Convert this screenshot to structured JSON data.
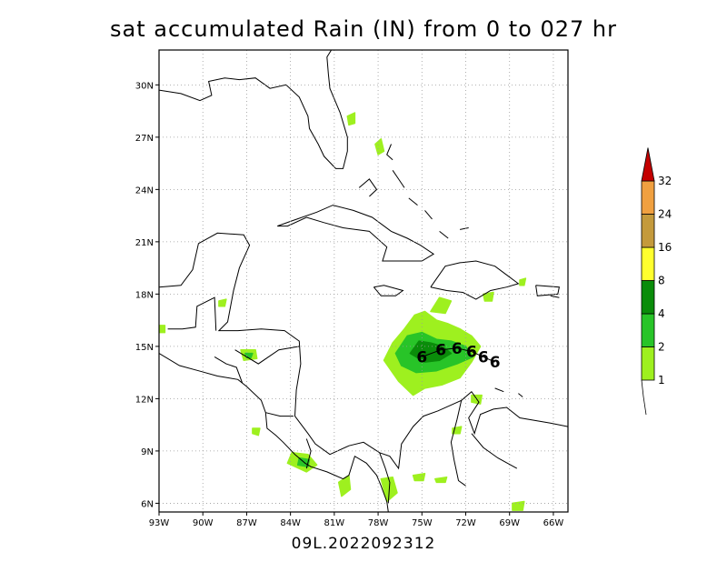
{
  "title": "sat accumulated Rain (IN) from 0 to 027 hr",
  "footer": "09L.2022092312",
  "map": {
    "lon_range": [
      -93,
      -65
    ],
    "lat_range": [
      5.5,
      32
    ],
    "lon_ticks": [
      {
        "value": -93,
        "label": "93W"
      },
      {
        "value": -90,
        "label": "90W"
      },
      {
        "value": -87,
        "label": "87W"
      },
      {
        "value": -84,
        "label": "84W"
      },
      {
        "value": -81,
        "label": "81W"
      },
      {
        "value": -78,
        "label": "78W"
      },
      {
        "value": -75,
        "label": "75W"
      },
      {
        "value": -72,
        "label": "72W"
      },
      {
        "value": -69,
        "label": "69W"
      },
      {
        "value": -66,
        "label": "66W"
      }
    ],
    "lat_ticks": [
      {
        "value": 6,
        "label": "6N"
      },
      {
        "value": 9,
        "label": "9N"
      },
      {
        "value": 12,
        "label": "12N"
      },
      {
        "value": 15,
        "label": "15N"
      },
      {
        "value": 18,
        "label": "18N"
      },
      {
        "value": 21,
        "label": "21N"
      },
      {
        "value": 24,
        "label": "24N"
      },
      {
        "value": 27,
        "label": "27N"
      },
      {
        "value": 30,
        "label": "30N"
      }
    ],
    "grid": true,
    "track_symbol": "6",
    "storm_track": [
      {
        "lon": -75.0,
        "lat": 14.4
      },
      {
        "lon": -73.7,
        "lat": 14.8
      },
      {
        "lon": -72.6,
        "lat": 14.9
      },
      {
        "lon": -71.6,
        "lat": 14.7
      },
      {
        "lon": -70.8,
        "lat": 14.4
      },
      {
        "lon": -70.0,
        "lat": 14.1
      }
    ]
  },
  "legend": {
    "labels": [
      "1",
      "2",
      "4",
      "8",
      "16",
      "24",
      "32"
    ],
    "bins": [
      {
        "color": "#9ef01f",
        "min": 1,
        "max": 2
      },
      {
        "color": "#28c428",
        "min": 2,
        "max": 4
      },
      {
        "color": "#0a8c0a",
        "min": 4,
        "max": 8
      },
      {
        "color": "#ffff2e",
        "min": 8,
        "max": 16
      },
      {
        "color": "#c49a3c",
        "min": 16,
        "max": 24
      },
      {
        "color": "#f0a040",
        "min": 24,
        "max": 32
      },
      {
        "color": "#c40000",
        "min": 32,
        "max": null
      }
    ]
  },
  "rain_areas": [
    {
      "color": "#9ef01f",
      "points": [
        [
          -77.6,
          14.2
        ],
        [
          -77.0,
          15.2
        ],
        [
          -76.2,
          16.0
        ],
        [
          -75.5,
          16.8
        ],
        [
          -74.8,
          17.0
        ],
        [
          -74.0,
          16.5
        ],
        [
          -73.2,
          16.3
        ],
        [
          -72.4,
          16.0
        ],
        [
          -71.6,
          15.6
        ],
        [
          -71.0,
          15.0
        ],
        [
          -71.6,
          14.1
        ],
        [
          -72.4,
          13.2
        ],
        [
          -73.6,
          12.8
        ],
        [
          -74.8,
          12.6
        ],
        [
          -75.6,
          12.2
        ],
        [
          -76.6,
          13.0
        ]
      ]
    },
    {
      "color": "#28c428",
      "points": [
        [
          -76.8,
          14.6
        ],
        [
          -76.0,
          15.6
        ],
        [
          -75.0,
          15.8
        ],
        [
          -74.0,
          15.4
        ],
        [
          -73.0,
          15.3
        ],
        [
          -72.0,
          15.0
        ],
        [
          -71.5,
          14.4
        ],
        [
          -72.6,
          14.0
        ],
        [
          -74.0,
          13.6
        ],
        [
          -75.4,
          13.5
        ],
        [
          -76.4,
          13.9
        ]
      ]
    },
    {
      "color": "#0a8c0a",
      "points": [
        [
          -75.8,
          14.6
        ],
        [
          -75.2,
          15.3
        ],
        [
          -74.4,
          15.2
        ],
        [
          -73.6,
          15.0
        ],
        [
          -73.0,
          14.6
        ],
        [
          -73.8,
          14.2
        ],
        [
          -74.8,
          14.1
        ]
      ]
    },
    {
      "color": "#9ef01f",
      "points": [
        [
          -74.4,
          17.0
        ],
        [
          -73.8,
          17.8
        ],
        [
          -73.0,
          17.6
        ],
        [
          -73.4,
          16.9
        ]
      ]
    },
    {
      "color": "#9ef01f",
      "points": [
        [
          -83.9,
          8.9
        ],
        [
          -82.8,
          8.8
        ],
        [
          -82.2,
          8.2
        ],
        [
          -82.9,
          7.8
        ],
        [
          -84.2,
          8.3
        ]
      ]
    },
    {
      "color": "#28c428",
      "points": [
        [
          -83.4,
          8.6
        ],
        [
          -82.7,
          8.5
        ],
        [
          -82.8,
          8.1
        ],
        [
          -83.5,
          8.2
        ]
      ]
    },
    {
      "color": "#9ef01f",
      "points": [
        [
          -80.7,
          7.2
        ],
        [
          -80.0,
          7.6
        ],
        [
          -79.9,
          6.8
        ],
        [
          -80.5,
          6.4
        ]
      ]
    },
    {
      "color": "#9ef01f",
      "points": [
        [
          -77.8,
          7.4
        ],
        [
          -77.0,
          7.5
        ],
        [
          -76.7,
          6.6
        ],
        [
          -77.4,
          6.1
        ]
      ]
    },
    {
      "color": "#9ef01f",
      "points": [
        [
          -75.6,
          7.6
        ],
        [
          -74.8,
          7.7
        ],
        [
          -74.9,
          7.3
        ],
        [
          -75.5,
          7.3
        ]
      ]
    },
    {
      "color": "#9ef01f",
      "points": [
        [
          -87.4,
          14.8
        ],
        [
          -86.4,
          14.8
        ],
        [
          -86.3,
          14.3
        ],
        [
          -87.2,
          14.2
        ]
      ]
    },
    {
      "color": "#28c428",
      "points": [
        [
          -87.1,
          14.6
        ],
        [
          -86.6,
          14.6
        ],
        [
          -86.7,
          14.35
        ],
        [
          -87.0,
          14.35
        ]
      ]
    },
    {
      "color": "#9ef01f",
      "points": [
        [
          -74.1,
          7.4
        ],
        [
          -73.3,
          7.5
        ],
        [
          -73.4,
          7.2
        ],
        [
          -74.0,
          7.2
        ]
      ]
    },
    {
      "color": "#9ef01f",
      "points": [
        [
          -72.9,
          10.3
        ],
        [
          -72.3,
          10.4
        ],
        [
          -72.4,
          10.0
        ],
        [
          -72.9,
          10.0
        ]
      ]
    },
    {
      "color": "#9ef01f",
      "points": [
        [
          -71.6,
          12.2
        ],
        [
          -70.9,
          12.2
        ],
        [
          -71.0,
          11.7
        ],
        [
          -71.6,
          11.8
        ]
      ]
    },
    {
      "color": "#9ef01f",
      "points": [
        [
          -78.2,
          26.6
        ],
        [
          -77.8,
          26.9
        ],
        [
          -77.6,
          26.2
        ],
        [
          -78.0,
          26.0
        ]
      ]
    },
    {
      "color": "#9ef01f",
      "points": [
        [
          -80.1,
          28.2
        ],
        [
          -79.6,
          28.4
        ],
        [
          -79.6,
          27.8
        ],
        [
          -80.0,
          27.7
        ]
      ]
    },
    {
      "color": "#9ef01f",
      "points": [
        [
          -70.8,
          18.0
        ],
        [
          -70.1,
          18.1
        ],
        [
          -70.2,
          17.6
        ],
        [
          -70.7,
          17.6
        ]
      ]
    },
    {
      "color": "#9ef01f",
      "points": [
        [
          -88.9,
          17.6
        ],
        [
          -88.4,
          17.7
        ],
        [
          -88.5,
          17.3
        ],
        [
          -88.9,
          17.3
        ]
      ]
    },
    {
      "color": "#9ef01f",
      "points": [
        [
          -68.3,
          18.8
        ],
        [
          -67.9,
          18.9
        ],
        [
          -68.0,
          18.5
        ],
        [
          -68.3,
          18.5
        ]
      ]
    },
    {
      "color": "#9ef01f",
      "points": [
        [
          -93.0,
          16.2
        ],
        [
          -92.6,
          16.2
        ],
        [
          -92.6,
          15.8
        ],
        [
          -93.0,
          15.8
        ]
      ]
    },
    {
      "color": "#9ef01f",
      "points": [
        [
          -86.6,
          10.3
        ],
        [
          -86.1,
          10.3
        ],
        [
          -86.2,
          9.9
        ],
        [
          -86.6,
          10.0
        ]
      ]
    },
    {
      "color": "#9ef01f",
      "points": [
        [
          -68.8,
          6.0
        ],
        [
          -68.0,
          6.1
        ],
        [
          -68.1,
          5.6
        ],
        [
          -68.8,
          5.6
        ]
      ]
    }
  ],
  "coastlines": [
    [
      [
        -93,
        29.7
      ],
      [
        -91.5,
        29.5
      ],
      [
        -90.2,
        29.1
      ],
      [
        -89.4,
        29.4
      ],
      [
        -89.6,
        30.2
      ],
      [
        -88.5,
        30.4
      ],
      [
        -87.5,
        30.3
      ],
      [
        -86.4,
        30.4
      ],
      [
        -85.4,
        29.8
      ],
      [
        -84.3,
        30.0
      ],
      [
        -83.4,
        29.3
      ],
      [
        -82.8,
        28.2
      ],
      [
        -82.7,
        27.5
      ],
      [
        -82.1,
        26.6
      ],
      [
        -81.7,
        25.9
      ],
      [
        -80.9,
        25.2
      ],
      [
        -80.4,
        25.2
      ],
      [
        -80.1,
        26.2
      ],
      [
        -80.1,
        27.0
      ],
      [
        -80.6,
        28.4
      ],
      [
        -81.3,
        29.8
      ],
      [
        -81.4,
        30.6
      ],
      [
        -81.5,
        31.6
      ],
      [
        -81.2,
        32.0
      ]
    ],
    [
      [
        -84.9,
        21.9
      ],
      [
        -83.9,
        22.2
      ],
      [
        -82.2,
        22.7
      ],
      [
        -81.1,
        23.1
      ],
      [
        -79.7,
        22.8
      ],
      [
        -78.4,
        22.4
      ],
      [
        -77.1,
        21.6
      ],
      [
        -76.0,
        21.2
      ],
      [
        -75.1,
        20.8
      ],
      [
        -74.2,
        20.3
      ],
      [
        -75.0,
        19.9
      ],
      [
        -76.3,
        19.9
      ],
      [
        -77.7,
        19.9
      ],
      [
        -77.4,
        20.7
      ],
      [
        -78.6,
        21.6
      ],
      [
        -80.4,
        21.8
      ],
      [
        -81.7,
        22.1
      ],
      [
        -82.9,
        22.4
      ],
      [
        -84.2,
        21.9
      ],
      [
        -84.9,
        21.9
      ]
    ],
    [
      [
        -74.4,
        18.4
      ],
      [
        -73.4,
        19.6
      ],
      [
        -72.4,
        19.8
      ],
      [
        -71.3,
        19.9
      ],
      [
        -70.0,
        19.6
      ],
      [
        -69.2,
        19.1
      ],
      [
        -68.4,
        18.6
      ],
      [
        -69.2,
        18.4
      ],
      [
        -70.3,
        18.2
      ],
      [
        -71.3,
        17.7
      ],
      [
        -72.2,
        18.1
      ],
      [
        -73.3,
        18.2
      ],
      [
        -74.4,
        18.4
      ]
    ],
    [
      [
        -78.3,
        18.4
      ],
      [
        -77.6,
        18.5
      ],
      [
        -76.3,
        18.2
      ],
      [
        -76.8,
        17.9
      ],
      [
        -77.8,
        17.9
      ],
      [
        -78.3,
        18.4
      ]
    ],
    [
      [
        -67.2,
        18.5
      ],
      [
        -65.6,
        18.4
      ],
      [
        -65.7,
        18.0
      ],
      [
        -67.1,
        17.9
      ],
      [
        -67.2,
        18.5
      ]
    ],
    [
      [
        -93,
        18.4
      ],
      [
        -91.5,
        18.5
      ],
      [
        -90.7,
        19.4
      ],
      [
        -90.3,
        20.9
      ],
      [
        -89.0,
        21.5
      ],
      [
        -87.2,
        21.4
      ],
      [
        -86.8,
        20.8
      ],
      [
        -87.5,
        19.5
      ],
      [
        -87.9,
        18.2
      ],
      [
        -88.3,
        16.4
      ],
      [
        -88.9,
        15.9
      ],
      [
        -87.6,
        15.9
      ],
      [
        -86.0,
        16.0
      ],
      [
        -84.4,
        15.9
      ],
      [
        -83.4,
        15.3
      ],
      [
        -83.3,
        14.0
      ],
      [
        -83.6,
        12.5
      ],
      [
        -83.7,
        11.0
      ],
      [
        -82.8,
        10.0
      ],
      [
        -82.3,
        9.4
      ],
      [
        -81.3,
        8.8
      ],
      [
        -80.0,
        9.3
      ],
      [
        -79.0,
        9.5
      ],
      [
        -77.9,
        8.9
      ],
      [
        -77.2,
        8.7
      ],
      [
        -76.6,
        8.0
      ],
      [
        -76.4,
        9.4
      ],
      [
        -75.6,
        10.4
      ],
      [
        -74.9,
        11.0
      ],
      [
        -73.9,
        11.3
      ],
      [
        -72.3,
        11.9
      ],
      [
        -71.6,
        12.4
      ],
      [
        -71.1,
        11.8
      ],
      [
        -71.8,
        10.9
      ],
      [
        -71.4,
        10.0
      ],
      [
        -71.0,
        11.1
      ],
      [
        -70.1,
        11.4
      ],
      [
        -69.2,
        11.5
      ],
      [
        -68.3,
        10.9
      ],
      [
        -66.2,
        10.6
      ],
      [
        -65,
        10.4
      ]
    ],
    [
      [
        -93,
        14.6
      ],
      [
        -91.6,
        13.9
      ],
      [
        -90.3,
        13.6
      ],
      [
        -89.0,
        13.3
      ],
      [
        -87.6,
        13.1
      ],
      [
        -87.0,
        12.7
      ],
      [
        -86.0,
        11.9
      ],
      [
        -85.7,
        11.2
      ],
      [
        -85.6,
        10.3
      ],
      [
        -85.0,
        9.9
      ],
      [
        -84.5,
        9.5
      ],
      [
        -83.7,
        8.8
      ],
      [
        -83.0,
        8.3
      ],
      [
        -82.6,
        8.1
      ],
      [
        -81.5,
        7.8
      ],
      [
        -80.4,
        7.4
      ],
      [
        -80.0,
        7.6
      ],
      [
        -79.6,
        8.7
      ],
      [
        -78.8,
        8.3
      ],
      [
        -78.1,
        7.6
      ],
      [
        -77.8,
        7.0
      ],
      [
        -77.4,
        6.1
      ],
      [
        -77.3,
        5.5
      ]
    ],
    [
      [
        -92.4,
        16.0
      ],
      [
        -91.4,
        16.0
      ],
      [
        -90.5,
        16.1
      ],
      [
        -90.4,
        17.3
      ],
      [
        -89.2,
        17.8
      ],
      [
        -89.1,
        15.9
      ]
    ],
    [
      [
        -89.2,
        14.4
      ],
      [
        -88.4,
        14.0
      ],
      [
        -87.7,
        13.8
      ],
      [
        -87.3,
        12.9
      ]
    ],
    [
      [
        -87.8,
        14.8
      ],
      [
        -86.2,
        14.0
      ],
      [
        -84.8,
        14.8
      ],
      [
        -83.4,
        15.0
      ]
    ],
    [
      [
        -85.7,
        11.2
      ],
      [
        -84.7,
        11.0
      ],
      [
        -83.8,
        11.0
      ]
    ],
    [
      [
        -82.9,
        9.7
      ],
      [
        -82.6,
        9.0
      ],
      [
        -82.9,
        8.0
      ]
    ],
    [
      [
        -77.9,
        8.9
      ],
      [
        -77.5,
        8.0
      ],
      [
        -77.2,
        7.2
      ],
      [
        -77.3,
        6.0
      ]
    ],
    [
      [
        -72.3,
        11.9
      ],
      [
        -72.6,
        10.8
      ],
      [
        -73.0,
        9.5
      ],
      [
        -72.8,
        8.5
      ],
      [
        -72.5,
        7.3
      ],
      [
        -72.0,
        7.0
      ]
    ],
    [
      [
        -71.6,
        10.0
      ],
      [
        -70.8,
        9.2
      ],
      [
        -69.8,
        8.6
      ],
      [
        -68.5,
        8.0
      ]
    ],
    [
      [
        -79.3,
        24.1
      ],
      [
        -78.6,
        24.6
      ],
      [
        -78.1,
        24.0
      ],
      [
        -78.6,
        23.6
      ]
    ],
    [
      [
        -77.0,
        25.1
      ],
      [
        -76.6,
        24.6
      ],
      [
        -76.2,
        24.1
      ]
    ],
    [
      [
        -77.1,
        26.6
      ],
      [
        -77.4,
        26.0
      ],
      [
        -77.0,
        25.7
      ]
    ],
    [
      [
        -75.9,
        23.5
      ],
      [
        -75.3,
        23.1
      ]
    ],
    [
      [
        -74.8,
        22.8
      ],
      [
        -74.3,
        22.3
      ]
    ],
    [
      [
        -73.8,
        21.6
      ],
      [
        -73.2,
        21.2
      ]
    ],
    [
      [
        -72.4,
        21.7
      ],
      [
        -71.8,
        21.8
      ]
    ],
    [
      [
        -70.0,
        12.6
      ],
      [
        -69.4,
        12.4
      ]
    ],
    [
      [
        -68.4,
        12.3
      ],
      [
        -68.1,
        12.1
      ]
    ],
    [
      [
        -66.2,
        17.9
      ],
      [
        -65.6,
        17.8
      ]
    ]
  ]
}
